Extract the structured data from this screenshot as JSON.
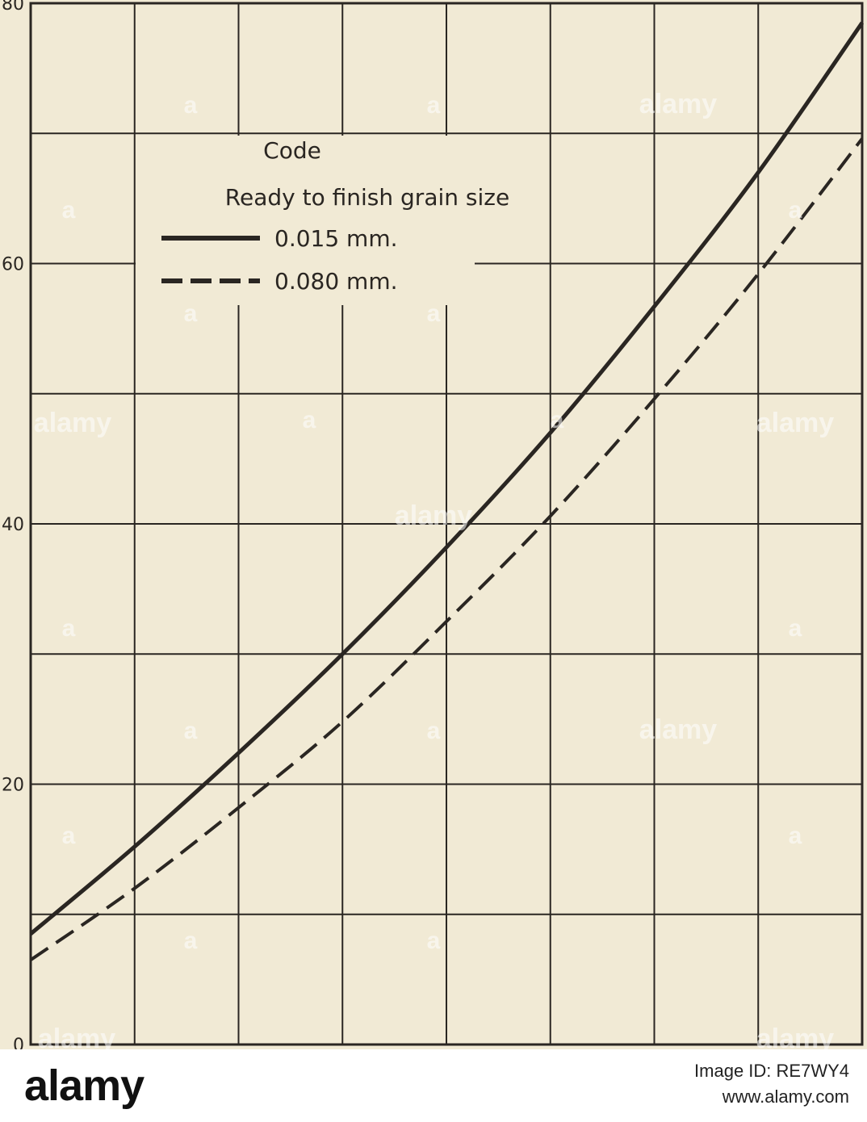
{
  "chart_data": {
    "type": "line",
    "title": "",
    "xlabel": "",
    "ylabel": "",
    "ylim": [
      0,
      80
    ],
    "y_ticks": [
      "80",
      "60",
      "40",
      "20",
      "0"
    ],
    "x": [
      0,
      1,
      2,
      3,
      4,
      5,
      6,
      7,
      8
    ],
    "grid": true,
    "legend": {
      "title_line1": "Code",
      "title_line2": "Ready to finish grain size",
      "placement": "upper-left"
    },
    "series": [
      {
        "name": "0.015 mm.",
        "style": "solid",
        "values": [
          8.5,
          15.2,
          22.4,
          30.0,
          38.2,
          47.0,
          56.7,
          67.0,
          78.5
        ]
      },
      {
        "name": "0.080 mm.",
        "style": "dashed",
        "values": [
          6.5,
          12.0,
          18.2,
          24.8,
          32.5,
          40.6,
          49.6,
          59.2,
          69.6
        ]
      }
    ]
  },
  "watermark": {
    "text": "alamy",
    "short": "a"
  },
  "footer": {
    "logo": "alamy",
    "image_id": "Image ID: RE7WY4",
    "url": "www.alamy.com"
  },
  "colors": {
    "background": "#f1ead5",
    "line": "#2a2622",
    "footer_bg": "#ffffff"
  }
}
